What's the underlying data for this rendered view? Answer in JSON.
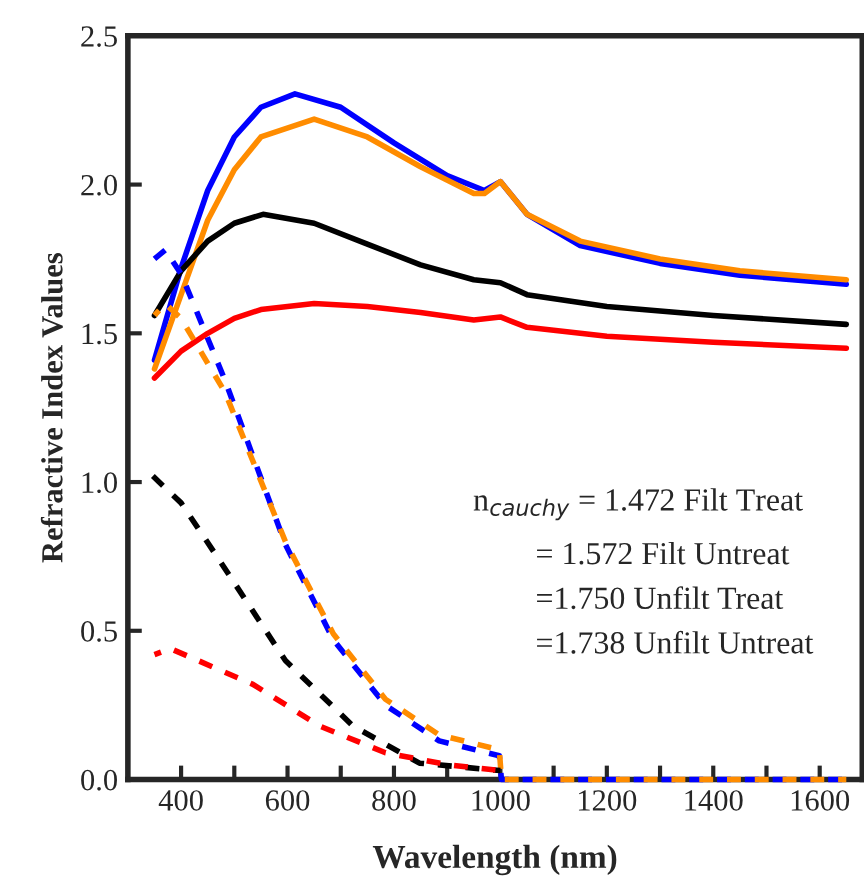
{
  "chart_data": {
    "type": "line",
    "xlabel": "Wavelength (nm)",
    "ylabel": "Refractive Index Values",
    "xlim": [
      300,
      1680
    ],
    "ylim": [
      0,
      2.5
    ],
    "xticks": [
      400,
      {
        "value": 500,
        "label": null
      },
      600,
      {
        "value": 700,
        "label": null
      },
      800,
      {
        "value": 900,
        "label": null
      },
      1000,
      {
        "value": 1100,
        "label": null
      },
      1200,
      {
        "value": 1300,
        "label": null
      },
      1400,
      {
        "value": 1500,
        "label": null
      },
      1600
    ],
    "yticks": [
      {
        "value": 0,
        "label": "0.0"
      },
      0.5,
      {
        "value": 1,
        "label": "1.0"
      },
      1.5,
      {
        "value": 2,
        "label": "2.0"
      },
      2.5
    ],
    "grid": false,
    "series": [
      {
        "color": "#0000ff",
        "line_style": "solid",
        "x": [
          350,
          400,
          450,
          500,
          550,
          614,
          700,
          800,
          900,
          970,
          1000,
          1050,
          1150,
          1300,
          1450,
          1650
        ],
        "values": [
          1.41,
          1.72,
          1.98,
          2.16,
          2.26,
          2.305,
          2.26,
          2.14,
          2.03,
          1.98,
          2.01,
          1.9,
          1.795,
          1.735,
          1.695,
          1.665
        ]
      },
      {
        "color": "#ff8c00",
        "line_style": "solid",
        "x": [
          350,
          400,
          450,
          500,
          550,
          650,
          750,
          850,
          950,
          970,
          1000,
          1050,
          1150,
          1300,
          1450,
          1650
        ],
        "values": [
          1.38,
          1.63,
          1.88,
          2.05,
          2.16,
          2.22,
          2.16,
          2.06,
          1.97,
          1.97,
          2.01,
          1.9,
          1.81,
          1.75,
          1.71,
          1.68
        ]
      },
      {
        "color": "#000000",
        "line_style": "solid",
        "x": [
          350,
          400,
          450,
          500,
          554,
          650,
          750,
          850,
          950,
          1000,
          1050,
          1200,
          1400,
          1650
        ],
        "values": [
          1.56,
          1.71,
          1.81,
          1.87,
          1.9,
          1.87,
          1.8,
          1.73,
          1.68,
          1.67,
          1.63,
          1.59,
          1.56,
          1.53
        ]
      },
      {
        "color": "#ff0000",
        "line_style": "solid",
        "x": [
          350,
          400,
          450,
          500,
          550,
          650,
          750,
          850,
          950,
          1000,
          1050,
          1200,
          1400,
          1650
        ],
        "values": [
          1.35,
          1.44,
          1.5,
          1.55,
          1.58,
          1.6,
          1.59,
          1.57,
          1.545,
          1.555,
          1.52,
          1.49,
          1.47,
          1.45
        ]
      },
      {
        "color": "#0000ff",
        "line_style": "dashed",
        "x": [
          350,
          370,
          400,
          483,
          596,
          686,
          784,
          885,
          998,
          1002,
          1200,
          1400,
          1650
        ],
        "values": [
          1.75,
          1.78,
          1.7,
          1.34,
          0.79,
          0.47,
          0.25,
          0.13,
          0.08,
          0,
          0,
          0,
          0
        ]
      },
      {
        "color": "#ff8c00",
        "line_style": "dashed",
        "x": [
          350,
          370,
          400,
          483,
          596,
          686,
          784,
          885,
          998,
          1002,
          1200,
          1400,
          1650
        ],
        "values": [
          1.56,
          1.6,
          1.55,
          1.3,
          0.8,
          0.49,
          0.27,
          0.15,
          0.1,
          0,
          0,
          0,
          0
        ]
      },
      {
        "color": "#000000",
        "line_style": "dashed",
        "x": [
          347,
          400,
          471,
          596,
          723,
          848,
          1000
        ],
        "values": [
          1.02,
          0.93,
          0.74,
          0.4,
          0.18,
          0.055,
          0.03
        ]
      },
      {
        "color": "#ff0000",
        "line_style": "dashed",
        "x": [
          350,
          380,
          535,
          660,
          784,
          900,
          1000
        ],
        "values": [
          0.42,
          0.44,
          0.32,
          0.18,
          0.09,
          0.05,
          0.03
        ]
      }
    ],
    "annotations": [
      "n$_{cauchy}$ = 1.472 Filt Treat",
      "= 1.572 Filt Untreat",
      "=1.750 Unfilt Treat",
      "=1.738 Unfilt Untreat"
    ]
  }
}
